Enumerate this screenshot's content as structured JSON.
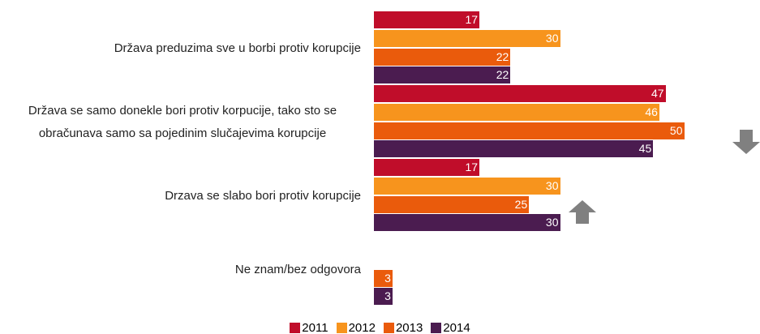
{
  "chart_data": {
    "type": "bar",
    "orientation": "horizontal",
    "categories": [
      "Država preduzima sve u borbi protiv korupcije",
      "Država se  samo donekle bori protiv korpucije, tako sto se obračunava samo sa pojedinim slučajevima korupcije",
      "Drzava se slabo bori protiv korupcije",
      "Ne znam/bez odgovora"
    ],
    "series": [
      {
        "name": "2011",
        "color": "#c00d2a",
        "values": [
          17,
          47,
          17,
          null
        ]
      },
      {
        "name": "2012",
        "color": "#f7941d",
        "values": [
          30,
          46,
          30,
          null
        ]
      },
      {
        "name": "2013",
        "color": "#ea5b0c",
        "values": [
          22,
          50,
          25,
          3
        ]
      },
      {
        "name": "2014",
        "color": "#4b1c50",
        "values": [
          22,
          45,
          30,
          3
        ]
      }
    ],
    "legend": "bottom"
  }
}
